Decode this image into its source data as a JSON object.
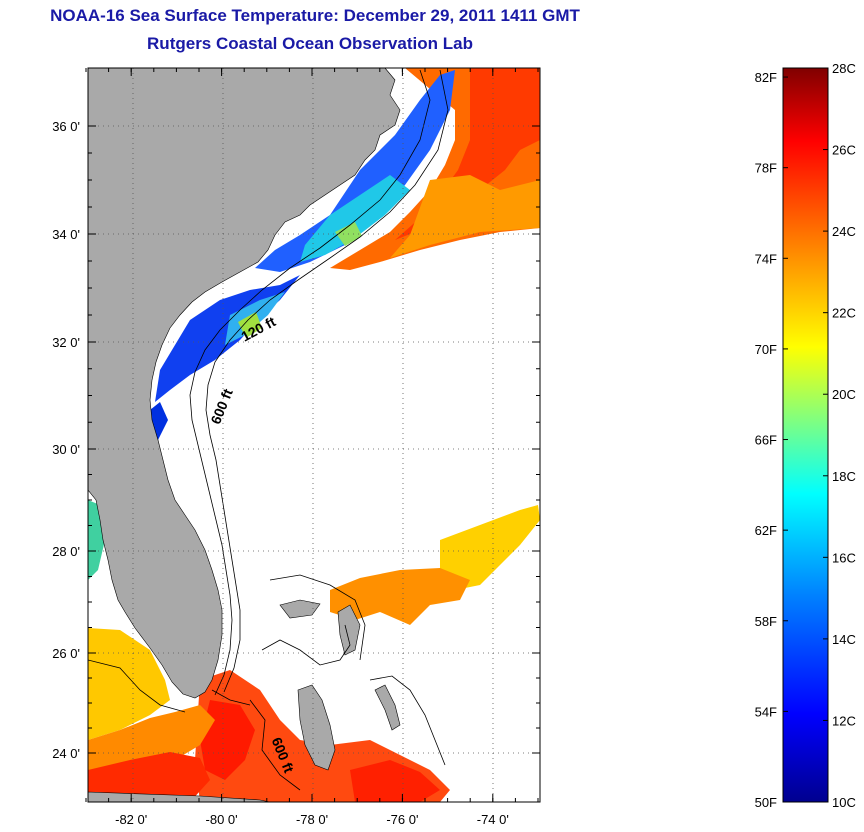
{
  "header": {
    "title": "NOAA-16 Sea Surface Temperature:  December 29, 2011 1411 GMT",
    "subtitle": "Rutgers Coastal Ocean Observation Lab"
  },
  "map": {
    "lon_range": [
      -83,
      -73
    ],
    "lat_range": [
      23,
      37.2
    ],
    "x_ticks": [
      {
        "lon": -82,
        "label": "-82 0'"
      },
      {
        "lon": -80,
        "label": "-80 0'"
      },
      {
        "lon": -78,
        "label": "-78 0'"
      },
      {
        "lon": -76,
        "label": "-76 0'"
      },
      {
        "lon": -74,
        "label": "-74 0'"
      }
    ],
    "y_ticks": [
      {
        "lat": 36,
        "label": "36 0'"
      },
      {
        "lat": 34,
        "label": "34 0'"
      },
      {
        "lat": 32,
        "label": "32 0'"
      },
      {
        "lat": 30,
        "label": "30 0'"
      },
      {
        "lat": 28,
        "label": "28 0'"
      },
      {
        "lat": 26,
        "label": "26 0'"
      },
      {
        "lat": 24,
        "label": "24 0'"
      }
    ],
    "contour_labels": [
      "120 ft",
      "600 ft",
      "600 ft"
    ],
    "colors": {
      "land": "#a9a9a9",
      "ocean_missing": "#ffffff",
      "grid": "#555555"
    }
  },
  "colorbar": {
    "range_c": [
      10,
      28
    ],
    "labels_f": [
      "82F",
      "78F",
      "74F",
      "70F",
      "66F",
      "62F",
      "58F",
      "54F",
      "50F"
    ],
    "labels_c": [
      "28C",
      "26C",
      "24C",
      "22C",
      "20C",
      "18C",
      "16C",
      "14C",
      "12C",
      "10C"
    ],
    "colormap": [
      "#00008f",
      "#0000ff",
      "#0080ff",
      "#00ffff",
      "#80ff80",
      "#ffff00",
      "#ff8000",
      "#ff0000",
      "#800000"
    ]
  }
}
